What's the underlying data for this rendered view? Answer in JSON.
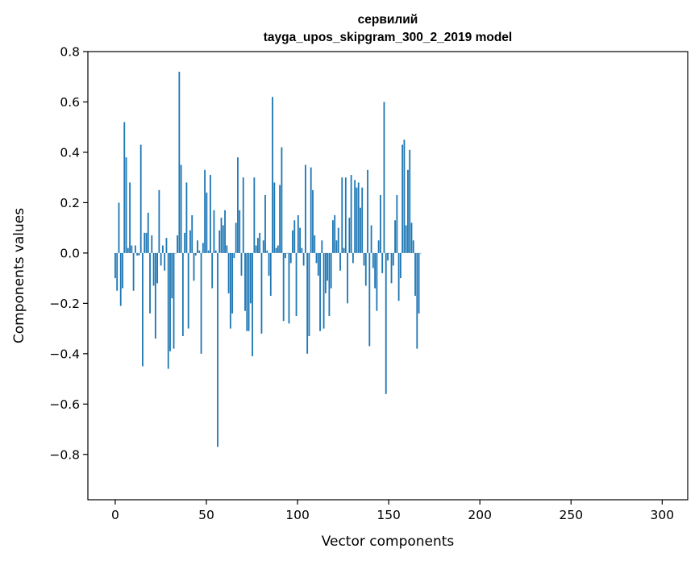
{
  "chart_data": {
    "type": "bar",
    "title": "сервилий",
    "subtitle": "tayga_upos_skipgram_300_2_2019 model",
    "xlabel": "Vector components",
    "ylabel": "Components values",
    "xlim": [
      -15,
      314
    ],
    "ylim": [
      -0.98,
      0.8
    ],
    "xticks": [
      0,
      50,
      100,
      150,
      200,
      250,
      300
    ],
    "yticks": [
      -0.8,
      -0.6,
      -0.4,
      -0.2,
      0.0,
      0.2,
      0.4,
      0.6,
      0.8
    ],
    "ytick_labels": [
      "−0.8",
      "−0.6",
      "−0.4",
      "−0.2",
      "0.0",
      "0.2",
      "0.4",
      "0.6",
      "0.8"
    ],
    "bar_color": "#1f77b4",
    "grid": false,
    "values": [
      -0.1,
      -0.15,
      0.2,
      -0.21,
      -0.14,
      0.52,
      0.38,
      0.02,
      0.28,
      0.03,
      -0.15,
      0.03,
      -0.01,
      -0.01,
      0.43,
      -0.45,
      0.08,
      0.08,
      0.16,
      -0.24,
      0.07,
      -0.13,
      -0.34,
      -0.12,
      0.25,
      -0.05,
      0.03,
      -0.07,
      0.06,
      -0.46,
      -0.39,
      -0.18,
      -0.38,
      0.0,
      0.07,
      0.72,
      0.35,
      -0.33,
      0.08,
      0.28,
      -0.3,
      0.09,
      0.15,
      -0.11,
      -0.01,
      0.05,
      0.01,
      -0.4,
      0.04,
      0.33,
      0.24,
      0.01,
      0.31,
      -0.14,
      0.17,
      0.01,
      -0.77,
      0.09,
      0.14,
      0.11,
      0.17,
      0.03,
      -0.16,
      -0.3,
      -0.24,
      -0.02,
      0.12,
      0.38,
      0.17,
      -0.09,
      0.3,
      -0.23,
      -0.31,
      -0.31,
      -0.2,
      -0.41,
      0.3,
      0.03,
      0.06,
      0.08,
      -0.32,
      0.05,
      0.23,
      0.01,
      -0.09,
      -0.17,
      0.62,
      0.28,
      0.02,
      0.03,
      0.27,
      0.42,
      -0.27,
      -0.02,
      0.0,
      -0.28,
      -0.04,
      0.09,
      0.13,
      -0.25,
      0.15,
      0.1,
      0.02,
      -0.05,
      0.35,
      -0.4,
      -0.33,
      0.34,
      0.25,
      0.07,
      -0.04,
      -0.09,
      -0.31,
      0.05,
      -0.3,
      -0.16,
      -0.11,
      -0.25,
      -0.14,
      0.13,
      0.15,
      0.05,
      0.1,
      -0.07,
      0.3,
      0.02,
      0.3,
      -0.2,
      0.14,
      0.31,
      -0.04,
      0.29,
      0.26,
      0.28,
      0.18,
      0.26,
      -0.05,
      -0.13,
      0.33,
      -0.37,
      0.11,
      -0.06,
      -0.14,
      -0.23,
      0.05,
      0.23,
      -0.08,
      0.6,
      -0.56,
      -0.03,
      0.0,
      -0.12,
      -0.05,
      0.13,
      0.23,
      -0.19,
      -0.1,
      0.43,
      0.45,
      0.11,
      0.33,
      0.41,
      0.12,
      0.05,
      -0.17,
      -0.38,
      -0.24,
      0.0
    ]
  }
}
